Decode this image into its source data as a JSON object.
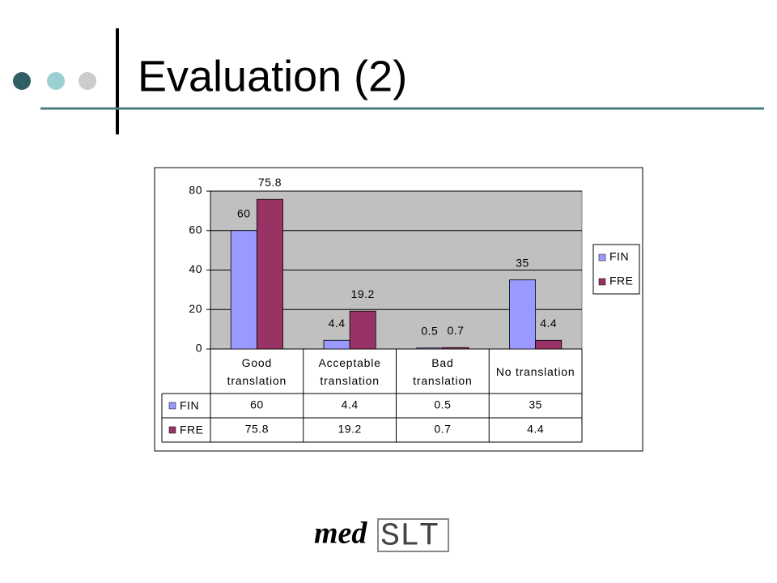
{
  "title": "Evaluation (2)",
  "logo": {
    "prefix": "med",
    "suffix": "SLT"
  },
  "chart_data": {
    "type": "bar",
    "categories": [
      "Good\ntranslation",
      "Acceptable\ntranslation",
      "Bad\ntranslation",
      "No translation"
    ],
    "series": [
      {
        "name": "FIN",
        "color": "#9999ff",
        "values": [
          60,
          4.4,
          0.5,
          35
        ]
      },
      {
        "name": "FRE",
        "color": "#993366",
        "values": [
          75.8,
          19.2,
          0.7,
          4.4
        ]
      }
    ],
    "ylim": [
      0,
      80
    ],
    "yticks": [
      0,
      20,
      40,
      60,
      80
    ],
    "grid": true,
    "legend": "right",
    "data_table": true,
    "plot_background": "#c0c0c0"
  }
}
